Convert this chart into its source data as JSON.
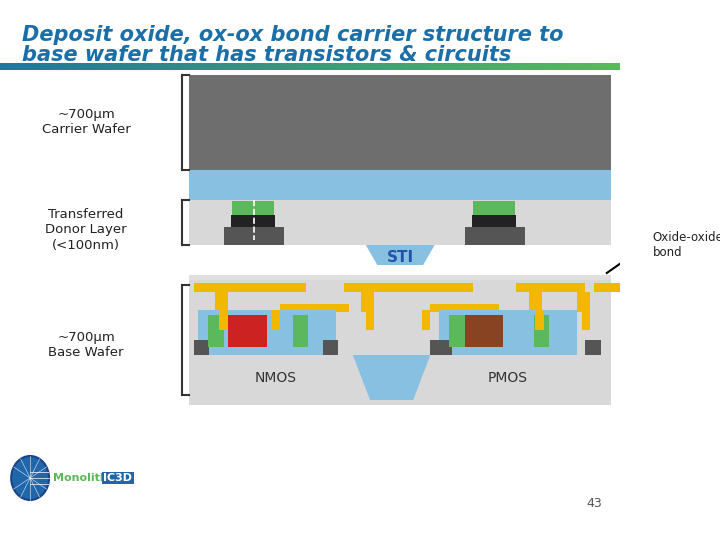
{
  "title_line1": "Deposit oxide, ox-ox bond carrier structure to",
  "title_line2": "base wafer that has transistors & circuits",
  "title_color": "#1a6fa8",
  "title_fontsize": 15,
  "bg_color": "#ffffff",
  "bar_gradient_colors": [
    "#2a8a8a",
    "#4ab04a"
  ],
  "page_number": "43",
  "label_carrier_wafer": "~700μm\nCarrier Wafer",
  "label_donor_layer": "Transferred\nDonor Layer\n(<100nm)",
  "label_base_wafer": "~700μm\nBase Wafer",
  "label_sti": "STI",
  "label_nmos": "NMOS",
  "label_pmos": "PMOS",
  "label_oxide_bond": "Oxide-oxide\nbond",
  "colors": {
    "carrier_gray": "#6e6e6e",
    "light_blue": "#87c0e0",
    "light_gray": "#c0c0c0",
    "lighter_gray": "#d8d8d8",
    "dark_gray": "#555555",
    "black": "#222222",
    "green": "#5cb85c",
    "gold": "#f0b800",
    "red": "#cc2222",
    "brown": "#884422",
    "white": "#ffffff",
    "very_light_gray": "#eeeeee"
  }
}
